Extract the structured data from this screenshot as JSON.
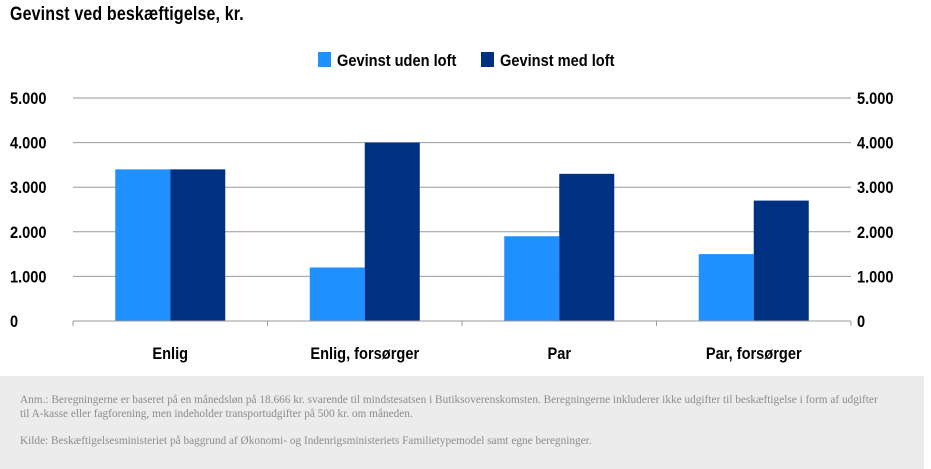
{
  "title": "Gevinst ved beskæftigelse, kr.",
  "chart_data": {
    "type": "bar",
    "categories": [
      "Enlig",
      "Enlig, forsørger",
      "Par",
      "Par, forsørger"
    ],
    "series": [
      {
        "name": "Gevinst uden loft",
        "color": "#1e90ff",
        "values": [
          3400,
          1200,
          1900,
          1500
        ]
      },
      {
        "name": "Gevinst med loft",
        "color": "#003082",
        "values": [
          3400,
          4000,
          3300,
          2700
        ]
      }
    ],
    "ylim": [
      0,
      5000
    ],
    "yticks": [
      0,
      1000,
      2000,
      3000,
      4000,
      5000
    ],
    "ytick_labels": [
      "0",
      "1.000",
      "2.000",
      "3.000",
      "4.000",
      "5.000"
    ],
    "grid": true,
    "legend_position": "top-center",
    "secondary_y_axis": true
  },
  "notes": {
    "anm": "Anm.: Beregningerne er baseret på en månedsløn på 18.666 kr. svarende til mindstesatsen i Butiksoverenskomsten. Beregningerne inkluderer ikke udgifter til beskæftigelse i form af udgifter til A-kasse eller fagforening, men indeholder transportudgifter på 500 kr. om måneden.",
    "kilde": "Kilde: Beskæftigelsesministeriet på baggrund af Økonomi- og Indenrigsministeriets Familietypemodel samt egne beregninger."
  }
}
